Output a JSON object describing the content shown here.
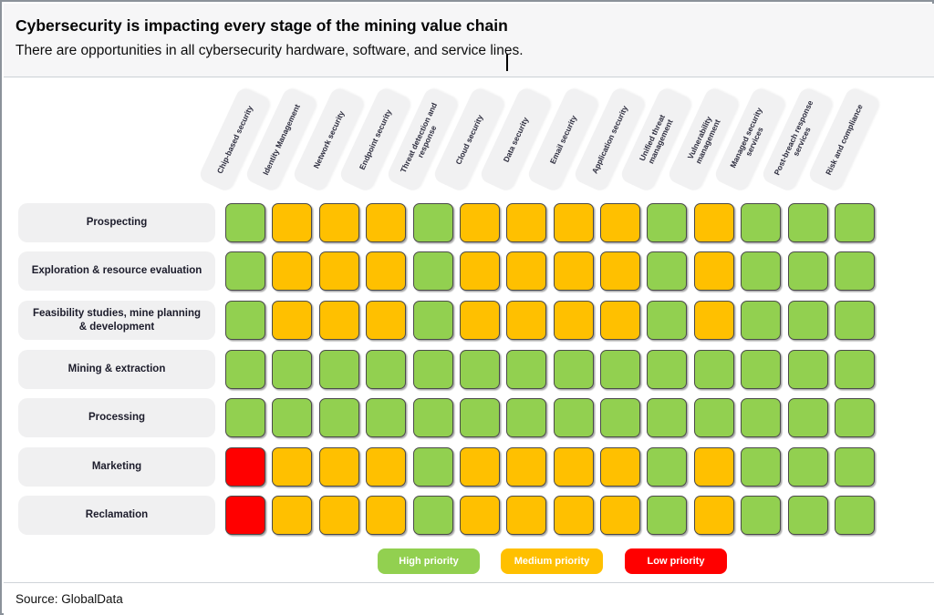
{
  "header": {
    "title": "Cybersecurity is impacting every stage of the mining value chain",
    "subtitle": "There are opportunities in all cybersecurity hardware, software, and service lines."
  },
  "source": "Source: GlobalData",
  "chart_data": {
    "type": "heatmap",
    "title": "Cybersecurity is impacting every stage of the mining value chain",
    "subtitle": "There are opportunities in all cybersecurity hardware, software, and service lines.",
    "columns": [
      "Chip-based security",
      "Identity Management",
      "Network security",
      "Endpoint security",
      "Threat detection and response",
      "Cloud security",
      "Data security",
      "Email security",
      "Application security",
      "Unified threat management",
      "Vulnerability management",
      "Managed security services",
      "Post-breach response services",
      "Risk and compliance"
    ],
    "rows": [
      "Prospecting",
      "Exploration & resource evaluation",
      "Feasibility studies, mine planning & development",
      "Mining & extraction",
      "Processing",
      "Marketing",
      "Reclamation"
    ],
    "legend": [
      {
        "key": "high",
        "label": "High priority",
        "color": "#92D050"
      },
      {
        "key": "medium",
        "label": "Medium priority",
        "color": "#FFC000"
      },
      {
        "key": "low",
        "label": "Low priority",
        "color": "#FF0000"
      }
    ],
    "legend_position": "bottom",
    "values": [
      [
        "high",
        "medium",
        "medium",
        "medium",
        "high",
        "medium",
        "medium",
        "medium",
        "medium",
        "high",
        "medium",
        "high",
        "high",
        "high"
      ],
      [
        "high",
        "medium",
        "medium",
        "medium",
        "high",
        "medium",
        "medium",
        "medium",
        "medium",
        "high",
        "medium",
        "high",
        "high",
        "high"
      ],
      [
        "high",
        "medium",
        "medium",
        "medium",
        "high",
        "medium",
        "medium",
        "medium",
        "medium",
        "high",
        "medium",
        "high",
        "high",
        "high"
      ],
      [
        "high",
        "high",
        "high",
        "high",
        "high",
        "high",
        "high",
        "high",
        "high",
        "high",
        "high",
        "high",
        "high",
        "high"
      ],
      [
        "high",
        "high",
        "high",
        "high",
        "high",
        "high",
        "high",
        "high",
        "high",
        "high",
        "high",
        "high",
        "high",
        "high"
      ],
      [
        "low",
        "medium",
        "medium",
        "medium",
        "high",
        "medium",
        "medium",
        "medium",
        "medium",
        "high",
        "medium",
        "high",
        "high",
        "high"
      ],
      [
        "low",
        "medium",
        "medium",
        "medium",
        "high",
        "medium",
        "medium",
        "medium",
        "medium",
        "high",
        "medium",
        "high",
        "high",
        "high"
      ]
    ],
    "source": "Source: GlobalData"
  }
}
